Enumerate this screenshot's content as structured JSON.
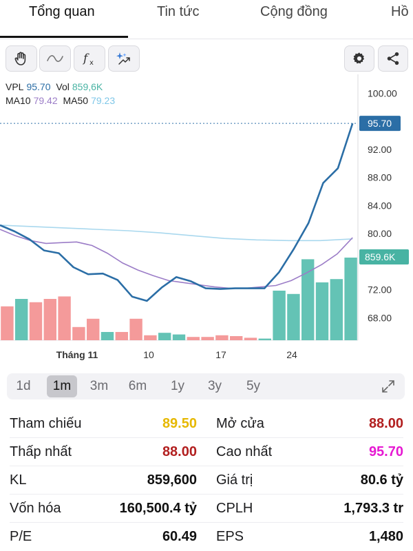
{
  "tabs": [
    "Tổng quan",
    "Tin tức",
    "Cộng đồng",
    "Hồ"
  ],
  "toolbar": {
    "left_icons": [
      "hand-icon",
      "wave-icon",
      "function-icon",
      "sparkle-chart-icon"
    ],
    "right_icons": [
      "gear-icon",
      "share-icon"
    ]
  },
  "legend": {
    "symbol": "VPL",
    "price": "95.70",
    "vol_label": "Vol",
    "vol": "859,6K",
    "ma10_label": "MA10",
    "ma10": "79.42",
    "ma50_label": "MA50",
    "ma50": "79.23"
  },
  "colors": {
    "price_line": "#2b6ea6",
    "ma10": "#9b7cc7",
    "ma50": "#a9d8ee",
    "vol_up": "#64c3b5",
    "vol_down": "#f49a9a",
    "price_tag": "#2b6ea6",
    "vol_tag": "#48b3a3",
    "ref": "#e6b800",
    "red": "#b21f1f",
    "magenta": "#e619d2"
  },
  "chart_data": {
    "type": "line",
    "x_labels": [
      "Tháng 11",
      "10",
      "17",
      "24"
    ],
    "y_ticks": [
      "100.00",
      "92.00",
      "88.00",
      "84.00",
      "80.00",
      "72.00",
      "68.00"
    ],
    "ylim": [
      64.8,
      101.5
    ],
    "current_price_label": "95.70",
    "current_volume_label": "859.6K",
    "series": [
      {
        "key": "price",
        "values": [
          81.2,
          80.3,
          79.2,
          77.6,
          77.2,
          75.2,
          74.2,
          74.3,
          73.4,
          71.0,
          70.4,
          72.3,
          73.8,
          73.2,
          72.2,
          72.1,
          72.2,
          72.2,
          72.2,
          74.5,
          77.8,
          81.5,
          87.2,
          89.3,
          95.7
        ]
      },
      {
        "key": "ma10",
        "values": [
          80.6,
          79.7,
          79.0,
          78.6,
          78.7,
          78.8,
          78.3,
          77.2,
          75.8,
          74.8,
          74.0,
          73.3,
          73.0,
          72.7,
          72.4,
          72.2,
          72.2,
          72.4,
          72.6,
          73.3,
          74.4,
          75.6,
          77.1,
          79.42
        ]
      },
      {
        "key": "ma50",
        "values": [
          81.2,
          81.0,
          80.8,
          80.6,
          80.4,
          80.1,
          79.7,
          79.3,
          79.1,
          79.0,
          79.0,
          79.23
        ]
      }
    ],
    "volume_bars": [
      {
        "level": 0.41,
        "dir": "down"
      },
      {
        "level": 0.5,
        "dir": "up"
      },
      {
        "level": 0.46,
        "dir": "down"
      },
      {
        "level": 0.5,
        "dir": "down"
      },
      {
        "level": 0.53,
        "dir": "down"
      },
      {
        "level": 0.16,
        "dir": "down"
      },
      {
        "level": 0.26,
        "dir": "down"
      },
      {
        "level": 0.1,
        "dir": "up"
      },
      {
        "level": 0.1,
        "dir": "down"
      },
      {
        "level": 0.26,
        "dir": "down"
      },
      {
        "level": 0.06,
        "dir": "down"
      },
      {
        "level": 0.09,
        "dir": "up"
      },
      {
        "level": 0.07,
        "dir": "up"
      },
      {
        "level": 0.04,
        "dir": "down"
      },
      {
        "level": 0.04,
        "dir": "down"
      },
      {
        "level": 0.06,
        "dir": "down"
      },
      {
        "level": 0.05,
        "dir": "down"
      },
      {
        "level": 0.03,
        "dir": "down"
      },
      {
        "level": 0.02,
        "dir": "up"
      },
      {
        "level": 0.6,
        "dir": "up"
      },
      {
        "level": 0.56,
        "dir": "up"
      },
      {
        "level": 0.98,
        "dir": "up"
      },
      {
        "level": 0.7,
        "dir": "up"
      },
      {
        "level": 0.74,
        "dir": "up"
      },
      {
        "level": 1.0,
        "dir": "up"
      }
    ]
  },
  "ranges": [
    "1d",
    "1m",
    "3m",
    "6m",
    "1y",
    "3y",
    "5y"
  ],
  "active_range": "1m",
  "stats": {
    "ref_label": "Tham chiếu",
    "ref_value": "89.50",
    "open_label": "Mở cửa",
    "open_value": "88.00",
    "low_label": "Thấp nhất",
    "low_value": "88.00",
    "high_label": "Cao nhất",
    "high_value": "95.70",
    "kl_label": "KL",
    "kl_value": "859,600",
    "gt_label": "Giá trị",
    "gt_value": "80.6 tỷ",
    "cap_label": "Vốn hóa",
    "cap_value": "160,500.4 tỷ",
    "cplh_label": "CPLH",
    "cplh_value": "1,793.3 tr",
    "pe_label": "P/E",
    "pe_value": "60.49",
    "eps_label": "EPS",
    "eps_value": "1,480"
  }
}
